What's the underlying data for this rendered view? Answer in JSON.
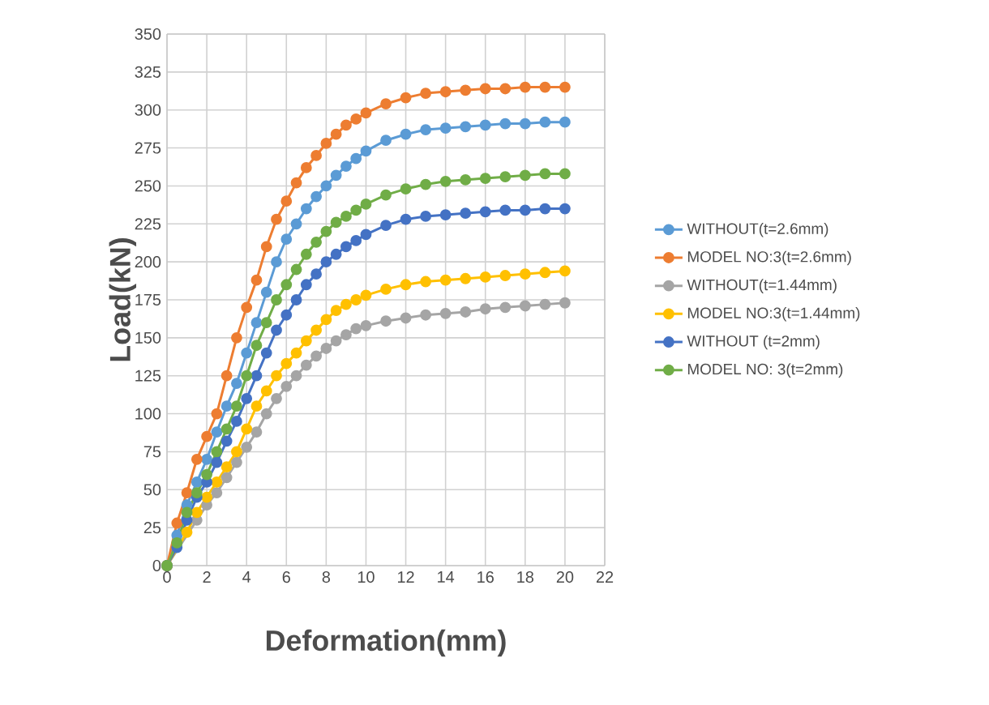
{
  "chart_data": {
    "type": "line",
    "xlabel": "Deformation(mm)",
    "ylabel": "Load(kN)",
    "x": [
      0,
      0.5,
      1,
      1.5,
      2,
      2.5,
      3,
      3.5,
      4,
      4.5,
      5,
      5.5,
      6,
      6.5,
      7,
      7.5,
      8,
      8.5,
      9,
      9.5,
      10,
      11,
      12,
      13,
      14,
      15,
      16,
      17,
      18,
      19,
      20
    ],
    "series": [
      {
        "name": "WITHOUT(t=2.6mm)",
        "color": "#5b9bd5",
        "values": [
          0,
          20,
          40,
          55,
          70,
          88,
          105,
          120,
          140,
          160,
          180,
          200,
          215,
          225,
          235,
          243,
          250,
          257,
          263,
          268,
          273,
          280,
          284,
          287,
          288,
          289,
          290,
          291,
          291,
          292,
          292
        ]
      },
      {
        "name": "MODEL NO:3(t=2.6mm)",
        "color": "#ed7d31",
        "values": [
          0,
          28,
          48,
          70,
          85,
          100,
          125,
          150,
          170,
          188,
          210,
          228,
          240,
          252,
          262,
          270,
          278,
          284,
          290,
          294,
          298,
          304,
          308,
          311,
          312,
          313,
          314,
          314,
          315,
          315,
          315
        ]
      },
      {
        "name": "WITHOUT(t=1.44mm)",
        "color": "#a5a5a5",
        "values": [
          0,
          null,
          null,
          30,
          40,
          48,
          58,
          68,
          78,
          88,
          100,
          110,
          118,
          125,
          132,
          138,
          143,
          148,
          152,
          156,
          158,
          161,
          163,
          165,
          166,
          167,
          169,
          170,
          171,
          172,
          173
        ]
      },
      {
        "name": "MODEL NO:3(t=1.44mm)",
        "color": "#ffc000",
        "values": [
          0,
          null,
          22,
          35,
          45,
          55,
          65,
          75,
          90,
          105,
          115,
          125,
          133,
          140,
          148,
          155,
          162,
          168,
          172,
          175,
          178,
          182,
          185,
          187,
          188,
          189,
          190,
          191,
          192,
          193,
          194
        ]
      },
      {
        "name": "WITHOUT (t=2mm)",
        "color": "#4472c4",
        "values": [
          0,
          12,
          30,
          45,
          55,
          68,
          82,
          95,
          110,
          125,
          140,
          155,
          165,
          175,
          185,
          192,
          200,
          205,
          210,
          214,
          218,
          224,
          228,
          230,
          231,
          232,
          233,
          234,
          234,
          235,
          235
        ]
      },
      {
        "name": "MODEL NO: 3(t=2mm)",
        "color": "#70ad47",
        "values": [
          0,
          15,
          35,
          48,
          60,
          75,
          90,
          105,
          125,
          145,
          160,
          175,
          185,
          195,
          205,
          213,
          220,
          226,
          230,
          234,
          238,
          244,
          248,
          251,
          253,
          254,
          255,
          256,
          257,
          258,
          258
        ]
      }
    ],
    "xlim": [
      0,
      22
    ],
    "ylim": [
      0,
      350
    ],
    "xticks": [
      0,
      2,
      4,
      6,
      8,
      10,
      12,
      14,
      16,
      18,
      20,
      22
    ],
    "yticks": [
      0,
      25,
      50,
      75,
      100,
      125,
      150,
      175,
      200,
      225,
      250,
      275,
      300,
      325,
      350
    ],
    "grid": true,
    "legend": "right",
    "marker": "circle",
    "line_style": "solid"
  }
}
